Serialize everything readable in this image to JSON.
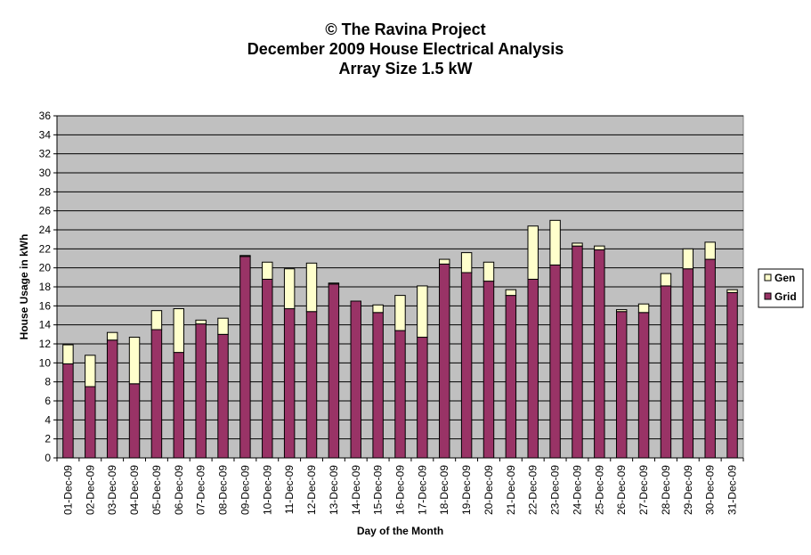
{
  "chart_data": {
    "type": "bar",
    "stacked": true,
    "title_lines": [
      "© The Ravina Project",
      "December 2009 House Electrical Analysis",
      "Array Size 1.5 kW"
    ],
    "xlabel": "Day of the Month",
    "ylabel": "House Usage in kWh",
    "ylim": [
      0,
      36
    ],
    "yticks": [
      0,
      2,
      4,
      6,
      8,
      10,
      12,
      14,
      16,
      18,
      20,
      22,
      24,
      26,
      28,
      30,
      32,
      34,
      36
    ],
    "grid": true,
    "legend_position": "right",
    "categories": [
      "01-Dec-09",
      "02-Dec-09",
      "03-Dec-09",
      "04-Dec-09",
      "05-Dec-09",
      "06-Dec-09",
      "07-Dec-09",
      "08-Dec-09",
      "09-Dec-09",
      "10-Dec-09",
      "11-Dec-09",
      "12-Dec-09",
      "13-Dec-09",
      "14-Dec-09",
      "15-Dec-09",
      "16-Dec-09",
      "17-Dec-09",
      "18-Dec-09",
      "19-Dec-09",
      "20-Dec-09",
      "21-Dec-09",
      "22-Dec-09",
      "23-Dec-09",
      "24-Dec-09",
      "25-Dec-09",
      "26-Dec-09",
      "27-Dec-09",
      "28-Dec-09",
      "29-Dec-09",
      "30-Dec-09",
      "31-Dec-09"
    ],
    "series": [
      {
        "name": "Grid",
        "color": "#993366",
        "values": [
          9.9,
          7.5,
          12.4,
          7.8,
          13.5,
          11.1,
          14.1,
          13.0,
          21.2,
          18.8,
          15.7,
          15.4,
          18.3,
          16.5,
          15.3,
          13.4,
          12.7,
          20.4,
          19.5,
          18.6,
          17.1,
          18.8,
          20.3,
          22.3,
          21.9,
          15.4,
          15.3,
          18.1,
          19.9,
          20.9,
          17.4
        ]
      },
      {
        "name": "Gen",
        "color": "#FFFFCC",
        "values": [
          2.0,
          3.3,
          0.8,
          4.9,
          2.0,
          4.6,
          0.4,
          1.7,
          0.1,
          1.8,
          4.2,
          5.1,
          0.1,
          0.0,
          0.8,
          3.7,
          5.4,
          0.5,
          2.1,
          2.0,
          0.6,
          5.6,
          4.7,
          0.3,
          0.4,
          0.2,
          0.9,
          1.3,
          2.1,
          1.8,
          0.3
        ]
      }
    ],
    "legend": [
      {
        "name": "Gen",
        "color": "#FFFFCC"
      },
      {
        "name": "Grid",
        "color": "#993366"
      }
    ],
    "plot_background": "#C0C0C0"
  }
}
